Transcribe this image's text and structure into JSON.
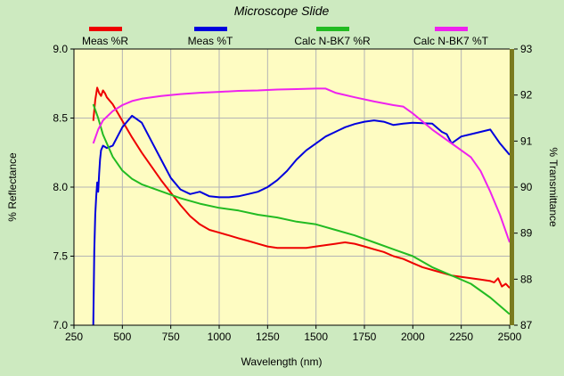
{
  "chart_data": {
    "type": "line",
    "title": "Microscope Slide",
    "xlabel": "Wavelength (nm)",
    "ylabel_left": "% Reflectance",
    "ylabel_right": "% Transmittance",
    "xlim": [
      250,
      2500
    ],
    "ylim_left": [
      7.0,
      9.0
    ],
    "ylim_right": [
      87,
      93
    ],
    "x_ticks": [
      250,
      500,
      750,
      1000,
      1250,
      1500,
      1750,
      2000,
      2250,
      2500
    ],
    "x_tick_labels": [
      "250",
      "500",
      "750",
      "1000",
      "1250",
      "1500",
      "1750",
      "2000",
      "2250",
      "2500"
    ],
    "y_left_ticks": [
      7.0,
      7.5,
      8.0,
      8.5,
      9.0
    ],
    "y_left_tick_labels": [
      "7.0",
      "7.5",
      "8.0",
      "8.5",
      "9.0"
    ],
    "y_right_ticks": [
      87,
      88,
      89,
      90,
      91,
      92,
      93
    ],
    "y_right_tick_labels": [
      "87",
      "88",
      "89",
      "90",
      "91",
      "92",
      "93"
    ],
    "grid": true,
    "legend_position": "top",
    "colors": {
      "background": "#cdeac0",
      "plot_area": "#fefcc2",
      "grid": "#b4b4b4",
      "right_axis": "#7a7a1e"
    },
    "series": [
      {
        "name": "Meas %R",
        "axis": "left",
        "color": "#ee0000",
        "x": [
          350,
          360,
          370,
          380,
          390,
          400,
          410,
          420,
          450,
          500,
          550,
          600,
          650,
          700,
          750,
          800,
          850,
          900,
          950,
          1000,
          1050,
          1100,
          1150,
          1200,
          1250,
          1300,
          1350,
          1400,
          1450,
          1500,
          1550,
          1600,
          1650,
          1700,
          1750,
          1800,
          1850,
          1900,
          1950,
          2000,
          2050,
          2100,
          2150,
          2200,
          2250,
          2300,
          2350,
          2400,
          2420,
          2440,
          2460,
          2480,
          2500
        ],
        "y": [
          8.48,
          8.63,
          8.72,
          8.68,
          8.66,
          8.7,
          8.68,
          8.65,
          8.6,
          8.48,
          8.36,
          8.25,
          8.15,
          8.05,
          7.96,
          7.87,
          7.79,
          7.73,
          7.69,
          7.67,
          7.65,
          7.63,
          7.61,
          7.59,
          7.57,
          7.56,
          7.56,
          7.56,
          7.56,
          7.57,
          7.58,
          7.59,
          7.6,
          7.59,
          7.57,
          7.55,
          7.53,
          7.5,
          7.48,
          7.45,
          7.42,
          7.4,
          7.38,
          7.36,
          7.35,
          7.34,
          7.33,
          7.32,
          7.31,
          7.34,
          7.28,
          7.3,
          7.27
        ]
      },
      {
        "name": "Meas %T",
        "axis": "right",
        "color": "#0000dd",
        "x": [
          350,
          355,
          360,
          365,
          370,
          375,
          380,
          385,
          390,
          400,
          420,
          450,
          500,
          550,
          600,
          650,
          700,
          750,
          800,
          850,
          900,
          950,
          1000,
          1050,
          1100,
          1150,
          1200,
          1250,
          1300,
          1350,
          1400,
          1450,
          1500,
          1550,
          1600,
          1650,
          1700,
          1750,
          1800,
          1850,
          1900,
          1950,
          2000,
          2050,
          2100,
          2150,
          2175,
          2200,
          2250,
          2300,
          2350,
          2400,
          2450,
          2500
        ],
        "y": [
          87.0,
          88.6,
          89.4,
          89.8,
          90.1,
          89.9,
          90.3,
          90.6,
          90.8,
          90.9,
          90.85,
          90.9,
          91.3,
          91.55,
          91.4,
          91.0,
          90.6,
          90.2,
          89.95,
          89.85,
          89.9,
          89.8,
          89.78,
          89.78,
          89.8,
          89.85,
          89.9,
          90.0,
          90.15,
          90.35,
          90.6,
          90.8,
          90.95,
          91.1,
          91.2,
          91.3,
          91.37,
          91.42,
          91.45,
          91.42,
          91.35,
          91.38,
          91.4,
          91.39,
          91.38,
          91.2,
          91.15,
          90.95,
          91.1,
          91.15,
          91.2,
          91.25,
          90.95,
          90.7
        ]
      },
      {
        "name": "Calc N-BK7 %R",
        "axis": "left",
        "color": "#22bb22",
        "x": [
          350,
          375,
          400,
          450,
          500,
          550,
          600,
          700,
          800,
          900,
          1000,
          1100,
          1200,
          1300,
          1400,
          1500,
          1600,
          1700,
          1800,
          1900,
          2000,
          2100,
          2200,
          2300,
          2400,
          2500
        ],
        "y": [
          8.6,
          8.5,
          8.38,
          8.22,
          8.12,
          8.06,
          8.02,
          7.97,
          7.92,
          7.88,
          7.85,
          7.83,
          7.8,
          7.78,
          7.75,
          7.73,
          7.69,
          7.65,
          7.6,
          7.55,
          7.5,
          7.42,
          7.36,
          7.3,
          7.2,
          7.08
        ]
      },
      {
        "name": "Calc N-BK7 %T",
        "axis": "right",
        "color": "#ee22ee",
        "x": [
          350,
          375,
          400,
          450,
          500,
          550,
          600,
          700,
          800,
          900,
          1000,
          1100,
          1200,
          1300,
          1400,
          1500,
          1550,
          1600,
          1700,
          1800,
          1900,
          1950,
          2000,
          2100,
          2200,
          2300,
          2350,
          2400,
          2450,
          2500
        ],
        "y": [
          90.95,
          91.25,
          91.45,
          91.65,
          91.78,
          91.87,
          91.92,
          91.98,
          92.02,
          92.05,
          92.07,
          92.09,
          92.1,
          92.12,
          92.13,
          92.14,
          92.14,
          92.05,
          91.95,
          91.86,
          91.78,
          91.75,
          91.6,
          91.25,
          90.95,
          90.65,
          90.35,
          89.9,
          89.4,
          88.8
        ]
      }
    ]
  }
}
